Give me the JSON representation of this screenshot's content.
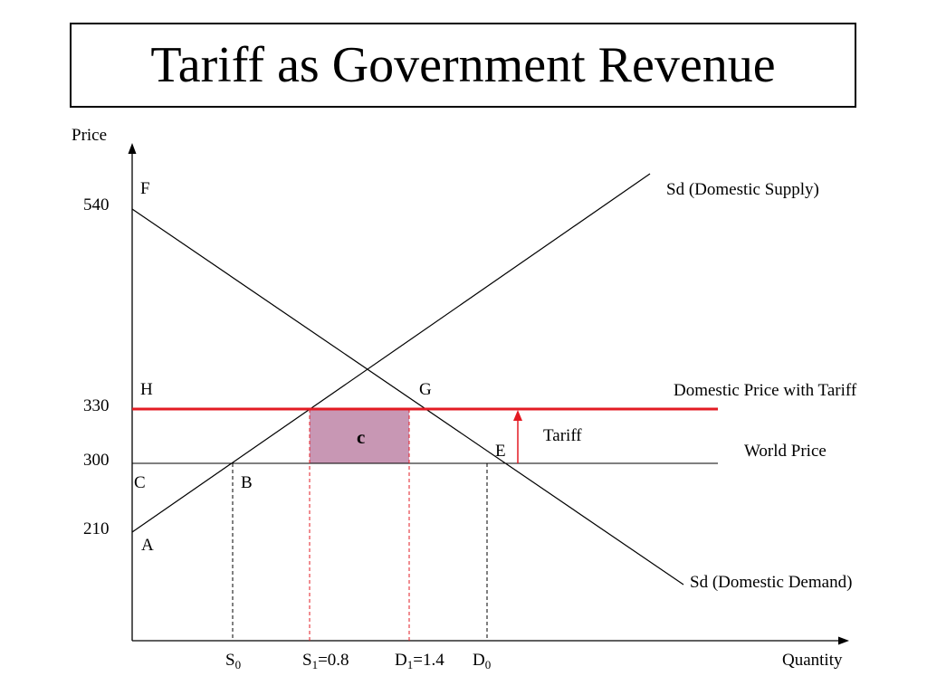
{
  "title": "Tariff as Government Revenue",
  "colors": {
    "tariff_line": "#e31b23",
    "shaded_area": "#c897b4",
    "axis": "#000000"
  },
  "axes": {
    "y_label": "Price",
    "x_label": "Quantity",
    "y_ticks": [
      "540",
      "330",
      "300",
      "210"
    ]
  },
  "points": {
    "F": "F",
    "H": "H",
    "G": "G",
    "E": "E",
    "C": "C",
    "B": "B",
    "A": "A"
  },
  "curves": {
    "supply": "Sd (Domestic Supply)",
    "demand": "Sd (Domestic Demand)",
    "tariff_price": "Domestic Price with Tariff",
    "world_price": "World Price"
  },
  "annotations": {
    "tariff": "Tariff",
    "area_c": "c"
  },
  "x_ticks": {
    "s0": {
      "main": "S",
      "sub": "0",
      "rest": ""
    },
    "s1": {
      "main": "S",
      "sub": "1",
      "rest": "=0.8"
    },
    "d1": {
      "main": "D",
      "sub": "1",
      "rest": "=1.4"
    },
    "d0": {
      "main": "D",
      "sub": "0",
      "rest": ""
    }
  }
}
